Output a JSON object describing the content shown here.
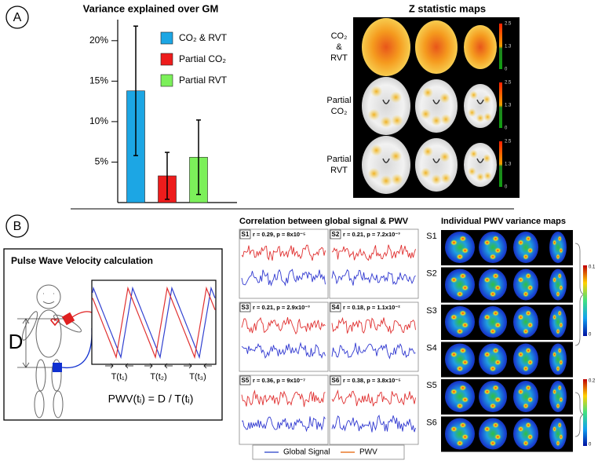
{
  "panel_a": {
    "label": "A",
    "maps_title": "Z statistic maps",
    "map_rows": [
      [
        "CO₂",
        "&",
        "RVT"
      ],
      [
        "Partial",
        "CO₂"
      ],
      [
        "Partial",
        "RVT"
      ]
    ],
    "colorbar_ticks": [
      "2.5",
      "1.3",
      "0"
    ]
  },
  "chart_data": {
    "type": "bar",
    "title": "Variance explained over GM",
    "categories": [
      null
    ],
    "series": [
      {
        "name": "CO₂ & RVT",
        "color": "#1ca6e4",
        "values": [
          13.8
        ],
        "errors": [
          8
        ]
      },
      {
        "name": "Partial CO₂",
        "color": "#ee1c1c",
        "values": [
          3.3
        ],
        "errors": [
          2.9
        ]
      },
      {
        "name": "Partial RVT",
        "color": "#7cf05a",
        "values": [
          5.6
        ],
        "errors": [
          4.6
        ]
      }
    ],
    "ylim": [
      0,
      22.6
    ],
    "yticks": [
      {
        "value": 5,
        "label": "5%"
      },
      {
        "value": 10,
        "label": "10%"
      },
      {
        "value": 15,
        "label": "15%"
      },
      {
        "value": 20,
        "label": "20%"
      }
    ]
  },
  "panel_b": {
    "label": "B",
    "pwv_title": "Pulse Wave Velocity calculation",
    "distance": "D",
    "periods": [
      "T(t₁)",
      "T(t₂)",
      "T(t₃)"
    ],
    "formula": "PWV(tᵢ) = D / T(tᵢ)",
    "corr_title": "Correlation between global signal & PWV",
    "subjects": [
      {
        "id": "S1",
        "stats": "r = 0.29, p = 8x10⁻⁵"
      },
      {
        "id": "S2",
        "stats": "r = 0.21, p = 7.2x10⁻³"
      },
      {
        "id": "S3",
        "stats": "r = 0.21, p = 2.9x10⁻³"
      },
      {
        "id": "S4",
        "stats": "r = 0.18, p = 1.1x10⁻²"
      },
      {
        "id": "S5",
        "stats": "r = 0.36, p = 9x10⁻⁷"
      },
      {
        "id": "S6",
        "stats": "r = 0.38, p = 3.8x10⁻⁵"
      }
    ],
    "legend": [
      {
        "name": "Global Signal",
        "color": "#4a5fd0"
      },
      {
        "name": "PWV",
        "color": "#e87a2a"
      }
    ],
    "maps_title": "Individual PWV variance maps",
    "map_subjects": [
      "S1",
      "S2",
      "S3",
      "S4",
      "S5",
      "S6"
    ],
    "colorbars": [
      [
        "0.1",
        "0"
      ],
      [
        "0.2",
        "0"
      ]
    ]
  }
}
